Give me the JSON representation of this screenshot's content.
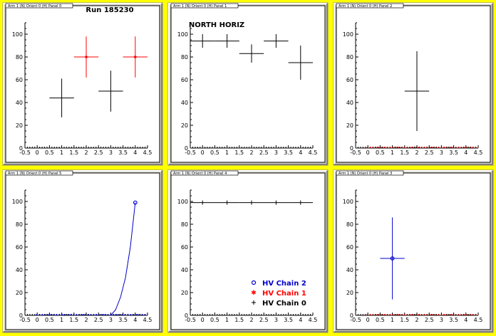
{
  "chart_data": [
    {
      "panel": 0,
      "panel_title": "Arm 1 (N) Orient 0 (H) Panel 0",
      "title": "Run 185230",
      "type": "scatter",
      "xlim": [
        -0.5,
        4.5
      ],
      "ylim": [
        0,
        110
      ],
      "xticks": [
        "-0.5",
        "0",
        "0.5",
        "1",
        "1.5",
        "2",
        "2.5",
        "3",
        "3.5",
        "4",
        "4.5"
      ],
      "yticks": [
        "0",
        "20",
        "40",
        "60",
        "80",
        "100"
      ],
      "series": [
        {
          "color": "#000000",
          "marker": "none",
          "points": [
            {
              "x": 1,
              "y": 44,
              "yerr": 17,
              "xerr": 0.5
            },
            {
              "x": 3,
              "y": 50,
              "yerr": 18,
              "xerr": 0.5
            }
          ]
        },
        {
          "color": "#ff0000",
          "marker": "star",
          "points": [
            {
              "x": 2,
              "y": 80,
              "yerr": 18,
              "xerr": 0.5
            },
            {
              "x": 4,
              "y": 80,
              "yerr": 18,
              "xerr": 0.5
            }
          ]
        }
      ]
    },
    {
      "panel": 1,
      "panel_title": "Arm 1 (N) Orient 0 (H) Panel 1",
      "title": "NORTH HORIZ",
      "type": "scatter",
      "xlim": [
        -0.5,
        4.5
      ],
      "ylim": [
        0,
        110
      ],
      "xticks": [
        "-0.5",
        "0",
        "0.5",
        "1",
        "1.5",
        "2",
        "2.5",
        "3",
        "3.5",
        "4",
        "4.5"
      ],
      "yticks": [
        "0",
        "20",
        "40",
        "60",
        "80",
        "100"
      ],
      "series": [
        {
          "color": "#000000",
          "marker": "none",
          "points": [
            {
              "x": 0,
              "y": 94,
              "yerr": 6,
              "xerr": 0.5
            },
            {
              "x": 1,
              "y": 94,
              "yerr": 6,
              "xerr": 0.5
            },
            {
              "x": 2,
              "y": 83,
              "yerr": 8,
              "xerr": 0.5
            },
            {
              "x": 3,
              "y": 94,
              "yerr": 6,
              "xerr": 0.5
            },
            {
              "x": 4,
              "y": 75,
              "yerr": 15,
              "xerr": 0.5
            }
          ]
        }
      ]
    },
    {
      "panel": 2,
      "panel_title": "Arm 1 (N) Orient 0 (H) Panel 2",
      "title": "",
      "type": "scatter",
      "xlim": [
        -0.5,
        4.5
      ],
      "ylim": [
        0,
        110
      ],
      "xticks": [
        "-0.5",
        "0",
        "0.5",
        "1",
        "1.5",
        "2",
        "2.5",
        "3",
        "3.5",
        "4",
        "4.5"
      ],
      "yticks": [
        "0",
        "20",
        "40",
        "60",
        "80",
        "100"
      ],
      "baseline": {
        "color": "#ff0000",
        "y": 0
      },
      "series": [
        {
          "color": "#000000",
          "marker": "none",
          "points": [
            {
              "x": 2,
              "y": 50,
              "yerr": 35,
              "xerr": 0.5
            }
          ]
        }
      ]
    },
    {
      "panel": 5,
      "panel_title": "Arm 1 (N) Orient 0 (H) Panel 5",
      "title": "",
      "type": "line",
      "xlim": [
        -0.5,
        4.5
      ],
      "ylim": [
        0,
        110
      ],
      "xticks": [
        "-0.5",
        "0",
        "0.5",
        "1",
        "1.5",
        "2",
        "2.5",
        "3",
        "3.5",
        "4",
        "4.5"
      ],
      "yticks": [
        "0",
        "20",
        "40",
        "60",
        "80",
        "100"
      ],
      "baseline": {
        "color": "#0000ff",
        "y": 0
      },
      "curve": {
        "color": "#0000cc",
        "points": [
          [
            3.0,
            0
          ],
          [
            3.2,
            5
          ],
          [
            3.4,
            16
          ],
          [
            3.6,
            33
          ],
          [
            3.8,
            60
          ],
          [
            4.0,
            99
          ]
        ]
      },
      "series": [
        {
          "color": "#0000cc",
          "marker": "circle",
          "points": [
            {
              "x": 4,
              "y": 99,
              "yerr": 0,
              "xerr": 0
            }
          ]
        }
      ]
    },
    {
      "panel": 4,
      "panel_title": "Arm 1 (N) Orient 0 (H) Panel 4",
      "title": "",
      "type": "scatter",
      "xlim": [
        -0.5,
        4.5
      ],
      "ylim": [
        0,
        110
      ],
      "xticks": [
        "-0.5",
        "0",
        "0.5",
        "1",
        "1.5",
        "2",
        "2.5",
        "3",
        "3.5",
        "4",
        "4.5"
      ],
      "yticks": [
        "0",
        "20",
        "40",
        "60",
        "80",
        "100"
      ],
      "series": [
        {
          "color": "#000000",
          "marker": "cross",
          "points": [
            {
              "x": 0,
              "y": 99,
              "yerr": 0,
              "xerr": 0.5
            },
            {
              "x": 1,
              "y": 99,
              "yerr": 0,
              "xerr": 0.5
            },
            {
              "x": 2,
              "y": 99,
              "yerr": 0,
              "xerr": 0.5
            },
            {
              "x": 3,
              "y": 99,
              "yerr": 0,
              "xerr": 0.5
            },
            {
              "x": 4,
              "y": 99,
              "yerr": 0,
              "xerr": 0.5
            }
          ]
        }
      ],
      "legend": [
        {
          "label": "HV Chain 2",
          "color": "#0000cc",
          "marker": "circle"
        },
        {
          "label": "HV Chain 1",
          "color": "#ff0000",
          "marker": "star"
        },
        {
          "label": "HV Chain 0",
          "color": "#000000",
          "marker": "cross"
        }
      ]
    },
    {
      "panel": 3,
      "panel_title": "Arm 1 (N) Orient 0 (H) Panel 3",
      "title": "",
      "type": "scatter",
      "xlim": [
        -0.5,
        4.5
      ],
      "ylim": [
        0,
        110
      ],
      "xticks": [
        "-0.5",
        "0",
        "0.5",
        "1",
        "1.5",
        "2",
        "2.5",
        "3",
        "3.5",
        "4",
        "4.5"
      ],
      "yticks": [
        "0",
        "20",
        "40",
        "60",
        "80",
        "100"
      ],
      "baseline": {
        "color": "#ff0000",
        "y": 0
      },
      "series": [
        {
          "color": "#0000cc",
          "marker": "circle",
          "points": [
            {
              "x": 1,
              "y": 50,
              "yerr": 36,
              "xerr": 0.5
            }
          ]
        }
      ]
    }
  ]
}
